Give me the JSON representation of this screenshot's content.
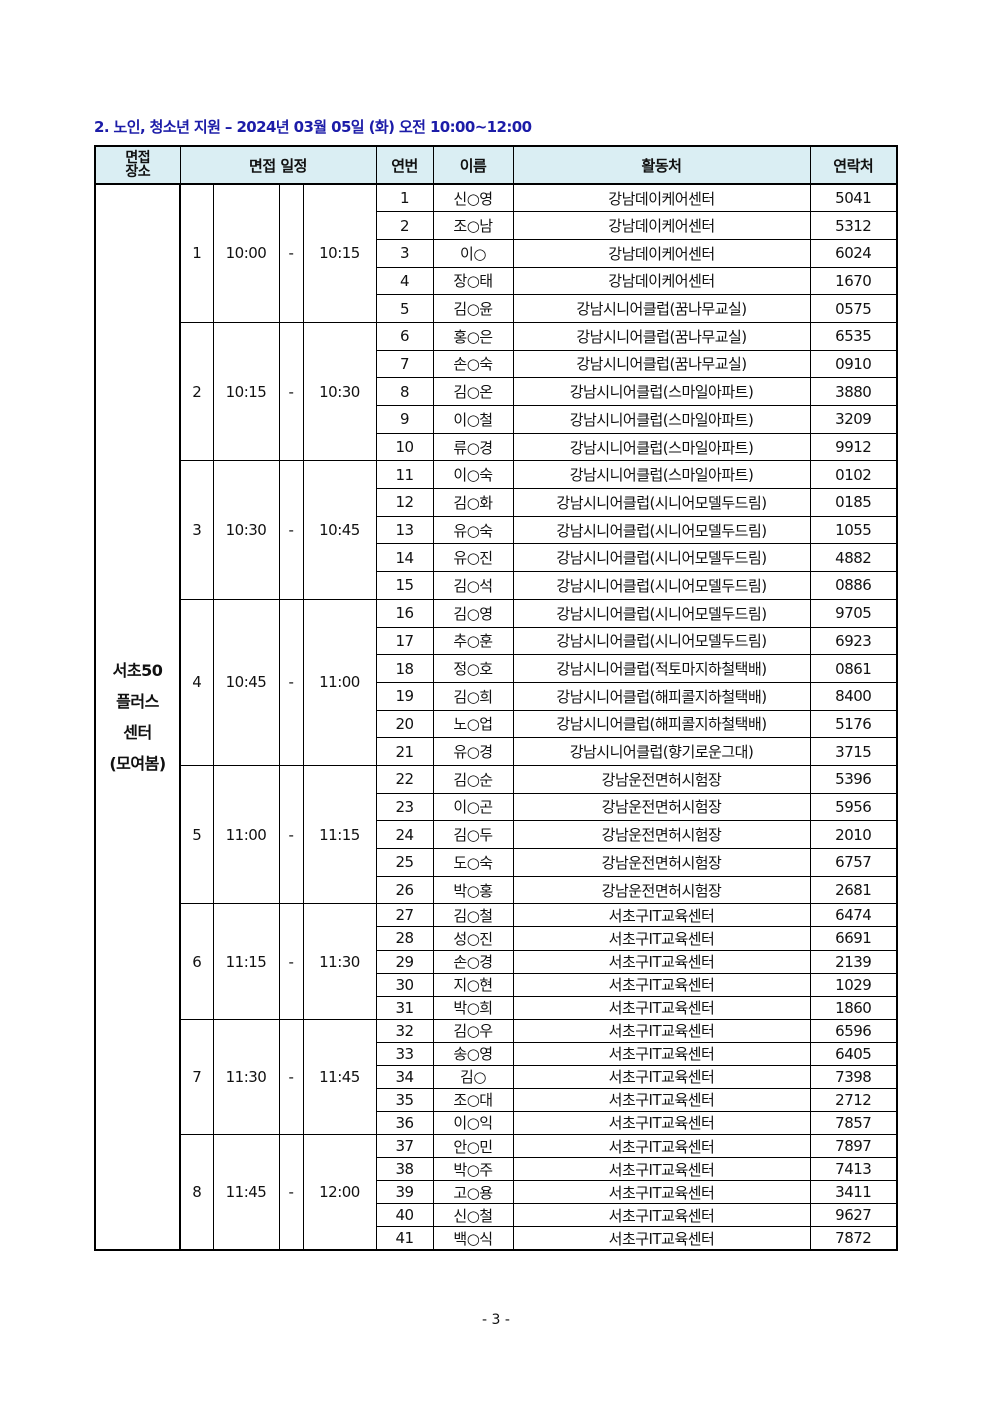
{
  "title": "2. 노인, 청소년 지원 – 2024년 03월 05일 (화) 오전 10:00~12:00",
  "headers": {
    "location": "면접\n장소",
    "location_l1": "면접",
    "location_l2": "장소",
    "schedule": "면접 일정",
    "no": "연번",
    "name": "이름",
    "workplace": "활동처",
    "contact": "연락처"
  },
  "location": {
    "l1": "서초50",
    "l2": "플러스",
    "l3": "센터",
    "l4": "(모여봄)"
  },
  "sessions": [
    {
      "no": "1",
      "start": "10:00",
      "sep": "-",
      "end": "10:15",
      "rows": [
        {
          "no": "1",
          "name": "신○영",
          "place": "강남데이케어센터",
          "contact": "5041"
        },
        {
          "no": "2",
          "name": "조○남",
          "place": "강남데이케어센터",
          "contact": "5312"
        },
        {
          "no": "3",
          "name": "이○",
          "place": "강남데이케어센터",
          "contact": "6024"
        },
        {
          "no": "4",
          "name": "장○태",
          "place": "강남데이케어센터",
          "contact": "1670"
        },
        {
          "no": "5",
          "name": "김○윤",
          "place": "강남시니어클럽(꿈나무교실)",
          "contact": "0575"
        }
      ]
    },
    {
      "no": "2",
      "start": "10:15",
      "sep": "-",
      "end": "10:30",
      "rows": [
        {
          "no": "6",
          "name": "홍○은",
          "place": "강남시니어클럽(꿈나무교실)",
          "contact": "6535"
        },
        {
          "no": "7",
          "name": "손○숙",
          "place": "강남시니어클럽(꿈나무교실)",
          "contact": "0910"
        },
        {
          "no": "8",
          "name": "김○온",
          "place": "강남시니어클럽(스마일아파트)",
          "contact": "3880"
        },
        {
          "no": "9",
          "name": "이○철",
          "place": "강남시니어클럽(스마일아파트)",
          "contact": "3209"
        },
        {
          "no": "10",
          "name": "류○경",
          "place": "강남시니어클럽(스마일아파트)",
          "contact": "9912"
        }
      ]
    },
    {
      "no": "3",
      "start": "10:30",
      "sep": "-",
      "end": "10:45",
      "rows": [
        {
          "no": "11",
          "name": "이○숙",
          "place": "강남시니어클럽(스마일아파트)",
          "contact": "0102"
        },
        {
          "no": "12",
          "name": "김○화",
          "place": "강남시니어클럽(시니어모델두드림)",
          "contact": "0185"
        },
        {
          "no": "13",
          "name": "유○숙",
          "place": "강남시니어클럽(시니어모델두드림)",
          "contact": "1055"
        },
        {
          "no": "14",
          "name": "유○진",
          "place": "강남시니어클럽(시니어모델두드림)",
          "contact": "4882"
        },
        {
          "no": "15",
          "name": "김○석",
          "place": "강남시니어클럽(시니어모델두드림)",
          "contact": "0886"
        }
      ]
    },
    {
      "no": "4",
      "start": "10:45",
      "sep": "-",
      "end": "11:00",
      "rows": [
        {
          "no": "16",
          "name": "김○영",
          "place": "강남시니어클럽(시니어모델두드림)",
          "contact": "9705"
        },
        {
          "no": "17",
          "name": "추○훈",
          "place": "강남시니어클럽(시니어모델두드림)",
          "contact": "6923"
        },
        {
          "no": "18",
          "name": "정○호",
          "place": "강남시니어클럽(적토마지하철택배)",
          "contact": "0861"
        },
        {
          "no": "19",
          "name": "김○희",
          "place": "강남시니어클럽(해피콜지하철택배)",
          "contact": "8400"
        },
        {
          "no": "20",
          "name": "노○업",
          "place": "강남시니어클럽(해피콜지하철택배)",
          "contact": "5176"
        },
        {
          "no": "21",
          "name": "유○경",
          "place": "강남시니어클럽(향기로운그대)",
          "contact": "3715"
        }
      ]
    },
    {
      "no": "5",
      "start": "11:00",
      "sep": "-",
      "end": "11:15",
      "rows": [
        {
          "no": "22",
          "name": "김○순",
          "place": "강남운전면허시험장",
          "contact": "5396"
        },
        {
          "no": "23",
          "name": "이○곤",
          "place": "강남운전면허시험장",
          "contact": "5956"
        },
        {
          "no": "24",
          "name": "김○두",
          "place": "강남운전면허시험장",
          "contact": "2010"
        },
        {
          "no": "25",
          "name": "도○숙",
          "place": "강남운전면허시험장",
          "contact": "6757"
        },
        {
          "no": "26",
          "name": "박○홍",
          "place": "강남운전면허시험장",
          "contact": "2681"
        }
      ]
    },
    {
      "no": "6",
      "start": "11:15",
      "sep": "-",
      "end": "11:30",
      "rows": [
        {
          "no": "27",
          "name": "김○철",
          "place": "서초구IT교육센터",
          "contact": "6474"
        },
        {
          "no": "28",
          "name": "성○진",
          "place": "서초구IT교육센터",
          "contact": "6691"
        },
        {
          "no": "29",
          "name": "손○경",
          "place": "서초구IT교육센터",
          "contact": "2139"
        },
        {
          "no": "30",
          "name": "지○현",
          "place": "서초구IT교육센터",
          "contact": "1029"
        },
        {
          "no": "31",
          "name": "박○희",
          "place": "서초구IT교육센터",
          "contact": "1860"
        }
      ]
    },
    {
      "no": "7",
      "start": "11:30",
      "sep": "-",
      "end": "11:45",
      "rows": [
        {
          "no": "32",
          "name": "김○우",
          "place": "서초구IT교육센터",
          "contact": "6596"
        },
        {
          "no": "33",
          "name": "송○영",
          "place": "서초구IT교육센터",
          "contact": "6405"
        },
        {
          "no": "34",
          "name": "김○",
          "place": "서초구IT교육센터",
          "contact": "7398"
        },
        {
          "no": "35",
          "name": "조○대",
          "place": "서초구IT교육센터",
          "contact": "2712"
        },
        {
          "no": "36",
          "name": "이○익",
          "place": "서초구IT교육센터",
          "contact": "7857"
        }
      ]
    },
    {
      "no": "8",
      "start": "11:45",
      "sep": "-",
      "end": "12:00",
      "rows": [
        {
          "no": "37",
          "name": "안○민",
          "place": "서초구IT교육센터",
          "contact": "7897"
        },
        {
          "no": "38",
          "name": "박○주",
          "place": "서초구IT교육센터",
          "contact": "7413"
        },
        {
          "no": "39",
          "name": "고○용",
          "place": "서초구IT교육센터",
          "contact": "3411"
        },
        {
          "no": "40",
          "name": "신○철",
          "place": "서초구IT교육센터",
          "contact": "9627"
        },
        {
          "no": "41",
          "name": "백○식",
          "place": "서초구IT교육센터",
          "contact": "7872"
        }
      ]
    }
  ],
  "footer": "- 3 -"
}
